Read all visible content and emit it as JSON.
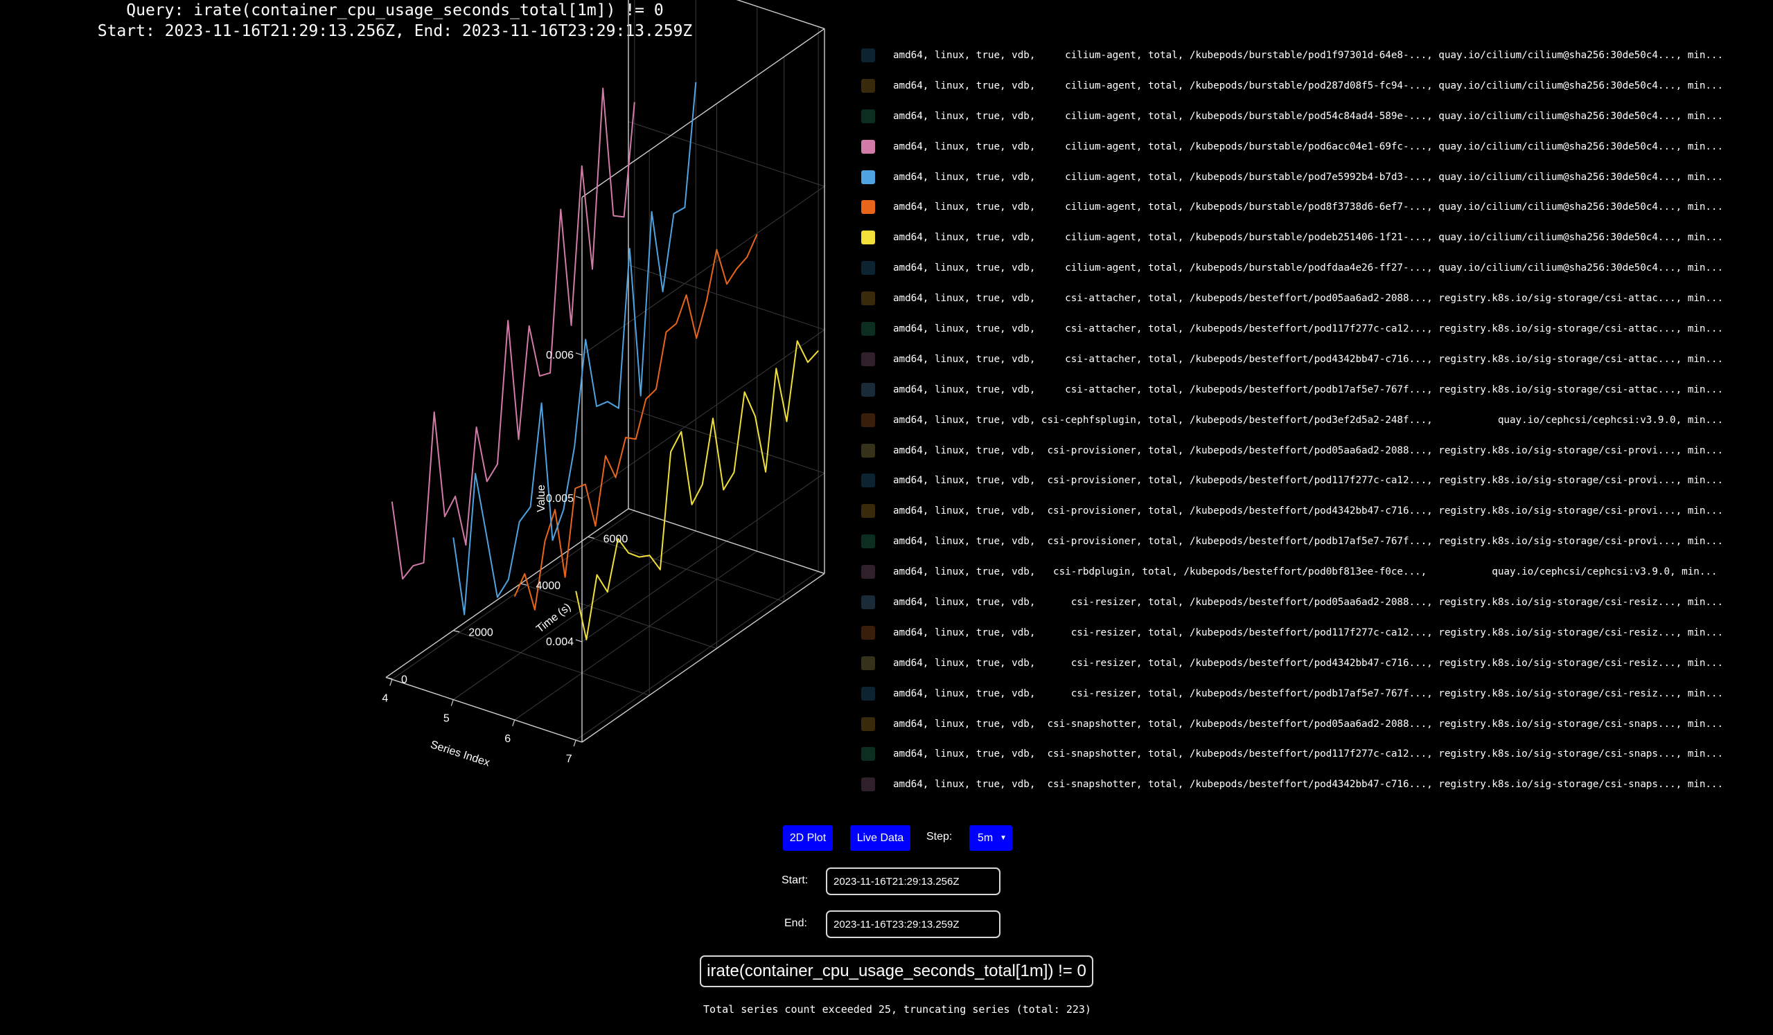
{
  "title": {
    "query_line": "Query: irate(container_cpu_usage_seconds_total[1m]) != 0",
    "range_line": "Start: 2023-11-16T21:29:13.256Z, End: 2023-11-16T23:29:13.259Z"
  },
  "chart_data": {
    "type": "line3d",
    "x_axis": {
      "label": "Series Index",
      "ticks": [
        "4",
        "5",
        "6",
        "7"
      ],
      "range": [
        3.9,
        7.1
      ]
    },
    "y_axis": {
      "label": "Time (s)",
      "ticks": [
        "0",
        "2000",
        "4000",
        "6000"
      ],
      "range": [
        0,
        7200
      ]
    },
    "z_axis": {
      "label": "Value",
      "ticks": [
        "0.004",
        "0.005",
        "0.006"
      ],
      "range": [
        0.0033,
        0.0071
      ]
    },
    "grid": true,
    "series": [
      {
        "index": 7,
        "color": "#f2df3a",
        "values": [
          0.00434,
          0.00395,
          0.00435,
          0.00418,
          0.0045,
          0.00435,
          0.00427,
          0.00423,
          0.00408,
          0.00485,
          0.00494,
          0.00438,
          0.00447,
          0.00488,
          0.00433,
          0.0044,
          0.00491,
          0.00469,
          0.00425,
          0.00492,
          0.0045,
          0.00501,
          0.00481,
          0.00484
        ]
      },
      {
        "index": 6,
        "color": "#e8651c",
        "values": [
          0.00416,
          0.00427,
          0.00397,
          0.0044,
          0.00457,
          0.00405,
          0.00462,
          0.0046,
          0.00426,
          0.0047,
          0.0045,
          0.00473,
          0.00467,
          0.0049,
          0.00492,
          0.00527,
          0.00528,
          0.00543,
          0.00508,
          0.00529,
          0.0056,
          0.00531,
          0.00537,
          0.0054,
          0.00551
        ]
      },
      {
        "index": 5,
        "color": "#4fa3e0",
        "values": [
          0.00443,
          0.00384,
          0.00477,
          0.00429,
          0.0038,
          0.00387,
          0.00422,
          0.00427,
          0.00494,
          0.00393,
          0.00409,
          0.00448,
          0.00517,
          0.00465,
          0.00463,
          0.00453,
          0.00559,
          0.00451,
          0.00574,
          0.00513,
          0.00562,
          0.00561,
          0.00643
        ]
      },
      {
        "index": 4,
        "color": "#d27aa8",
        "values": [
          0.00454,
          0.00395,
          0.00399,
          0.00396,
          0.00496,
          0.00418,
          0.00427,
          0.00388,
          0.00465,
          0.00422,
          0.00429,
          0.00524,
          0.00436,
          0.0051,
          0.0047,
          0.00467,
          0.00576,
          0.0049,
          0.00596,
          0.00519,
          0.0064,
          0.00546,
          0.0054,
          0.00615
        ]
      }
    ]
  },
  "legend": [
    {
      "color": "#0c2331",
      "text": "amd64, linux, true, vdb,     cilium-agent, total, /kubepods/burstable/pod1f97301d-64e8-..., quay.io/cilium/cilium@sha256:30de50c4..., min..."
    },
    {
      "color": "#3a2a0c",
      "text": "amd64, linux, true, vdb,     cilium-agent, total, /kubepods/burstable/pod287d08f5-fc94-..., quay.io/cilium/cilium@sha256:30de50c4..., min..."
    },
    {
      "color": "#0c2e21",
      "text": "amd64, linux, true, vdb,     cilium-agent, total, /kubepods/burstable/pod54c84ad4-589e-..., quay.io/cilium/cilium@sha256:30de50c4..., min..."
    },
    {
      "color": "#d27aa8",
      "text": "amd64, linux, true, vdb,     cilium-agent, total, /kubepods/burstable/pod6acc04e1-69fc-..., quay.io/cilium/cilium@sha256:30de50c4..., min..."
    },
    {
      "color": "#4fa3e0",
      "text": "amd64, linux, true, vdb,     cilium-agent, total, /kubepods/burstable/pod7e5992b4-b7d3-..., quay.io/cilium/cilium@sha256:30de50c4..., min..."
    },
    {
      "color": "#e8651c",
      "text": "amd64, linux, true, vdb,     cilium-agent, total, /kubepods/burstable/pod8f3738d6-6ef7-..., quay.io/cilium/cilium@sha256:30de50c4..., min..."
    },
    {
      "color": "#f2df3a",
      "text": "amd64, linux, true, vdb,     cilium-agent, total, /kubepods/burstable/podeb251406-1f21-..., quay.io/cilium/cilium@sha256:30de50c4..., min..."
    },
    {
      "color": "#0c2331",
      "text": "amd64, linux, true, vdb,     cilium-agent, total, /kubepods/burstable/podfdaa4e26-ff27-..., quay.io/cilium/cilium@sha256:30de50c4..., min..."
    },
    {
      "color": "#3a2a0c",
      "text": "amd64, linux, true, vdb,     csi-attacher, total, /kubepods/besteffort/pod05aa6ad2-2088..., registry.k8s.io/sig-storage/csi-attac..., min..."
    },
    {
      "color": "#0c2e21",
      "text": "amd64, linux, true, vdb,     csi-attacher, total, /kubepods/besteffort/pod117f277c-ca12..., registry.k8s.io/sig-storage/csi-attac..., min..."
    },
    {
      "color": "#30202c",
      "text": "amd64, linux, true, vdb,     csi-attacher, total, /kubepods/besteffort/pod4342bb47-c716..., registry.k8s.io/sig-storage/csi-attac..., min..."
    },
    {
      "color": "#1a2a36",
      "text": "amd64, linux, true, vdb,     csi-attacher, total, /kubepods/besteffort/podb17af5e7-767f..., registry.k8s.io/sig-storage/csi-attac..., min..."
    },
    {
      "color": "#3a1e0c",
      "text": "amd64, linux, true, vdb, csi-cephfsplugin, total, /kubepods/besteffort/pod3ef2d5a2-248f...,           quay.io/cephcsi/cephcsi:v3.9.0, min..."
    },
    {
      "color": "#36321a",
      "text": "amd64, linux, true, vdb,  csi-provisioner, total, /kubepods/besteffort/pod05aa6ad2-2088..., registry.k8s.io/sig-storage/csi-provi..., min..."
    },
    {
      "color": "#0c2331",
      "text": "amd64, linux, true, vdb,  csi-provisioner, total, /kubepods/besteffort/pod117f277c-ca12..., registry.k8s.io/sig-storage/csi-provi..., min..."
    },
    {
      "color": "#3a2a0c",
      "text": "amd64, linux, true, vdb,  csi-provisioner, total, /kubepods/besteffort/pod4342bb47-c716..., registry.k8s.io/sig-storage/csi-provi..., min..."
    },
    {
      "color": "#0c2e21",
      "text": "amd64, linux, true, vdb,  csi-provisioner, total, /kubepods/besteffort/podb17af5e7-767f..., registry.k8s.io/sig-storage/csi-provi..., min..."
    },
    {
      "color": "#30202c",
      "text": "amd64, linux, true, vdb,   csi-rbdplugin, total, /kubepods/besteffort/pod0bf813ee-f0ce...,           quay.io/cephcsi/cephcsi:v3.9.0, min..."
    },
    {
      "color": "#1a2a36",
      "text": "amd64, linux, true, vdb,      csi-resizer, total, /kubepods/besteffort/pod05aa6ad2-2088..., registry.k8s.io/sig-storage/csi-resiz..., min..."
    },
    {
      "color": "#3a1e0c",
      "text": "amd64, linux, true, vdb,      csi-resizer, total, /kubepods/besteffort/pod117f277c-ca12..., registry.k8s.io/sig-storage/csi-resiz..., min..."
    },
    {
      "color": "#36321a",
      "text": "amd64, linux, true, vdb,      csi-resizer, total, /kubepods/besteffort/pod4342bb47-c716..., registry.k8s.io/sig-storage/csi-resiz..., min..."
    },
    {
      "color": "#0c2331",
      "text": "amd64, linux, true, vdb,      csi-resizer, total, /kubepods/besteffort/podb17af5e7-767f..., registry.k8s.io/sig-storage/csi-resiz..., min..."
    },
    {
      "color": "#3a2a0c",
      "text": "amd64, linux, true, vdb,  csi-snapshotter, total, /kubepods/besteffort/pod05aa6ad2-2088..., registry.k8s.io/sig-storage/csi-snaps..., min..."
    },
    {
      "color": "#0c2e21",
      "text": "amd64, linux, true, vdb,  csi-snapshotter, total, /kubepods/besteffort/pod117f277c-ca12..., registry.k8s.io/sig-storage/csi-snaps..., min..."
    },
    {
      "color": "#30202c",
      "text": "amd64, linux, true, vdb,  csi-snapshotter, total, /kubepods/besteffort/pod4342bb47-c716..., registry.k8s.io/sig-storage/csi-snaps..., min..."
    }
  ],
  "controls": {
    "plot2d_label": "2D Plot",
    "live_label": "Live Data",
    "step_label": "Step:",
    "step_value": "5m",
    "start_label": "Start:",
    "start_value": "2023-11-16T21:29:13.256Z",
    "end_label": "End:",
    "end_value": "2023-11-16T23:29:13.259Z",
    "query_value": "irate(container_cpu_usage_seconds_total[1m]) != 0",
    "accent_color": "#0000ff"
  },
  "status": "Total series count exceeded 25, truncating series (total: 223)"
}
